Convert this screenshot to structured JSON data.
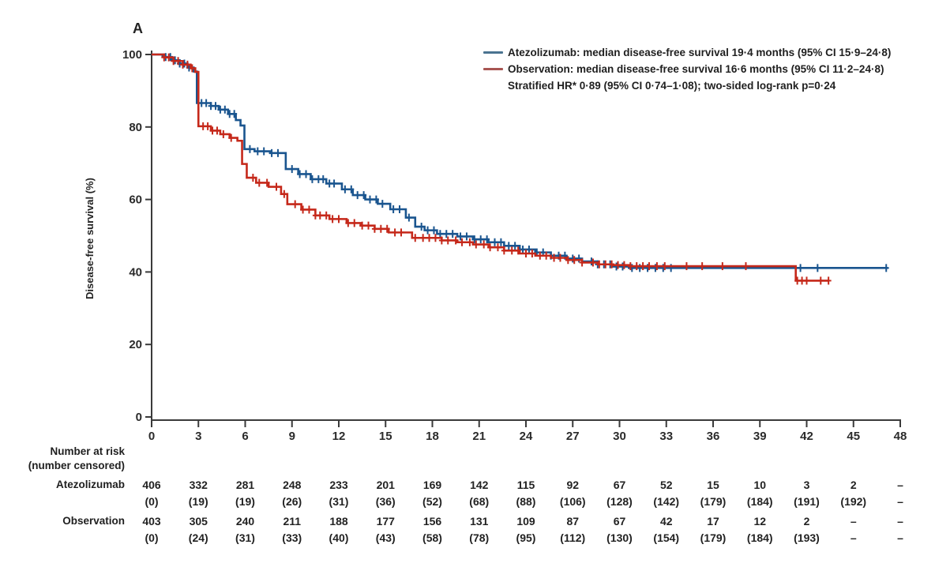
{
  "panel_label": "A",
  "colors": {
    "atezolizumab": "#1a558f",
    "observation": "#c5281a",
    "legend_atezolizumab": "#4a7390",
    "legend_observation": "#a85552",
    "axis": "#3a3a3a",
    "text": "#1a1a1a"
  },
  "legend": {
    "lines": [
      {
        "swatch": "atezolizumab",
        "text": "Atezolizumab: median disease-free survival 19·4 months (95% CI 15·9–24·8)"
      },
      {
        "swatch": "observation",
        "text": "Observation: median disease-free survival 16·6 months (95% CI 11·2–24·8)"
      },
      {
        "swatch": null,
        "text": "Stratified HR* 0·89 (95% CI 0·74–1·08); two-sided log-rank p=0·24"
      }
    ]
  },
  "chart_data": {
    "type": "line",
    "subtype": "kaplan-meier-step",
    "title": "",
    "xlabel": "",
    "ylabel": "Disease-free survival (%)",
    "xlim": [
      0,
      48
    ],
    "ylim": [
      0,
      100
    ],
    "xticks": [
      0,
      3,
      6,
      9,
      12,
      15,
      18,
      21,
      24,
      27,
      30,
      33,
      36,
      39,
      42,
      45,
      48
    ],
    "yticks": [
      0,
      20,
      40,
      60,
      80,
      100
    ],
    "grid": false,
    "legend_position": "top-right",
    "series": [
      {
        "name": "Atezolizumab",
        "color_key": "atezolizumab",
        "steps": [
          [
            0,
            100
          ],
          [
            0.7,
            99.3
          ],
          [
            1.3,
            98.4
          ],
          [
            1.8,
            97.5
          ],
          [
            2.3,
            96.4
          ],
          [
            2.7,
            95.3
          ],
          [
            2.9,
            86.6
          ],
          [
            3.8,
            85.8
          ],
          [
            4.3,
            84.8
          ],
          [
            4.9,
            83.6
          ],
          [
            5.4,
            81.9
          ],
          [
            5.7,
            80.4
          ],
          [
            5.95,
            73.9
          ],
          [
            6.6,
            73.3
          ],
          [
            7.6,
            72.8
          ],
          [
            8.6,
            68.4
          ],
          [
            9.4,
            67
          ],
          [
            10.2,
            65.6
          ],
          [
            11.2,
            64.4
          ],
          [
            12.2,
            62.8
          ],
          [
            12.9,
            61.2
          ],
          [
            13.7,
            60
          ],
          [
            14.5,
            58.8
          ],
          [
            15.3,
            57.3
          ],
          [
            16.3,
            55
          ],
          [
            16.9,
            52.5
          ],
          [
            17.5,
            51.5
          ],
          [
            18.3,
            50.5
          ],
          [
            19.6,
            49.8
          ],
          [
            20.6,
            49
          ],
          [
            21.6,
            48.2
          ],
          [
            22.6,
            47.2
          ],
          [
            23.6,
            46.2
          ],
          [
            24.6,
            45.4
          ],
          [
            25.6,
            44.5
          ],
          [
            26.6,
            43.7
          ],
          [
            27.6,
            42.9
          ],
          [
            28.6,
            42.1
          ],
          [
            29.6,
            41.5
          ],
          [
            30.6,
            41.1
          ],
          [
            47.2,
            41.1
          ]
        ],
        "censor_times": [
          0.9,
          1.2,
          1.5,
          1.8,
          2.1,
          2.4,
          3.2,
          3.5,
          3.8,
          4.1,
          4.4,
          4.7,
          5.0,
          5.3,
          6.3,
          6.8,
          7.2,
          7.7,
          8.1,
          9.0,
          9.5,
          9.9,
          10.3,
          10.7,
          11.0,
          11.4,
          11.7,
          12.4,
          12.8,
          13.2,
          13.6,
          14.0,
          14.4,
          14.8,
          15.5,
          15.9,
          16.5,
          17.3,
          17.7,
          18.1,
          18.5,
          18.9,
          19.3,
          19.8,
          20.2,
          20.7,
          21.1,
          21.5,
          22.0,
          22.4,
          22.9,
          23.3,
          23.8,
          24.2,
          24.7,
          25.1,
          25.6,
          26.1,
          26.5,
          27.0,
          27.4,
          28.2,
          28.6,
          29.0,
          29.4,
          29.8,
          30.2,
          30.8,
          31.3,
          31.8,
          32.3,
          32.8,
          33.3,
          41.6,
          42.7,
          47.1
        ]
      },
      {
        "name": "Observation",
        "color_key": "observation",
        "steps": [
          [
            0,
            100
          ],
          [
            0.8,
            99.2
          ],
          [
            1.4,
            98.2
          ],
          [
            2.0,
            97.2
          ],
          [
            2.5,
            96.2
          ],
          [
            2.8,
            95.2
          ],
          [
            3.0,
            80.2
          ],
          [
            3.8,
            79
          ],
          [
            4.4,
            78
          ],
          [
            5.0,
            77
          ],
          [
            5.5,
            76.2
          ],
          [
            5.8,
            69.8
          ],
          [
            6.1,
            66
          ],
          [
            6.7,
            64.6
          ],
          [
            7.5,
            63.5
          ],
          [
            8.3,
            61.5
          ],
          [
            8.7,
            58.7
          ],
          [
            9.6,
            57.2
          ],
          [
            10.5,
            55.6
          ],
          [
            11.4,
            54.6
          ],
          [
            12.5,
            53.5
          ],
          [
            13.4,
            52.8
          ],
          [
            14.3,
            51.9
          ],
          [
            15.2,
            50.9
          ],
          [
            16.7,
            49.4
          ],
          [
            18.6,
            48.7
          ],
          [
            19.6,
            48.2
          ],
          [
            20.6,
            47.6
          ],
          [
            21.6,
            46.8
          ],
          [
            22.6,
            45.9
          ],
          [
            23.6,
            45.1
          ],
          [
            24.6,
            44.5
          ],
          [
            25.6,
            43.9
          ],
          [
            26.6,
            43.3
          ],
          [
            27.6,
            42.6
          ],
          [
            28.6,
            42.1
          ],
          [
            29.6,
            41.9
          ],
          [
            30.6,
            41.6
          ],
          [
            41.1,
            41.6
          ],
          [
            41.3,
            37.6
          ],
          [
            43.4,
            37.6
          ]
        ],
        "censor_times": [
          0.8,
          1.1,
          1.4,
          1.7,
          2.0,
          2.3,
          2.6,
          3.3,
          3.6,
          3.9,
          4.2,
          4.6,
          5.1,
          6.5,
          6.9,
          7.4,
          8.0,
          8.5,
          9.2,
          9.7,
          10.1,
          10.5,
          10.8,
          11.2,
          11.6,
          12.0,
          12.6,
          13.0,
          13.5,
          13.9,
          14.3,
          14.7,
          15.1,
          15.6,
          16.0,
          16.9,
          17.4,
          17.8,
          18.2,
          18.6,
          19.0,
          19.5,
          19.9,
          20.4,
          20.8,
          21.3,
          21.7,
          22.2,
          22.6,
          23.1,
          23.5,
          24.0,
          24.4,
          24.9,
          25.3,
          25.8,
          26.2,
          26.7,
          27.1,
          27.6,
          28.3,
          28.7,
          29.1,
          29.5,
          29.9,
          30.3,
          30.7,
          31.1,
          31.5,
          31.9,
          32.4,
          32.9,
          34.3,
          35.3,
          36.6,
          38.1,
          41.4,
          41.7,
          42.0,
          42.9,
          43.4
        ]
      }
    ]
  },
  "risk_table": {
    "header_line1": "Number at risk",
    "header_line2": "(number censored)",
    "columns_months": [
      0,
      3,
      6,
      9,
      12,
      15,
      18,
      21,
      24,
      27,
      30,
      33,
      36,
      39,
      42,
      45,
      48
    ],
    "rows": [
      {
        "label": "Atezolizumab",
        "at_risk": [
          "406",
          "332",
          "281",
          "248",
          "233",
          "201",
          "169",
          "142",
          "115",
          "92",
          "67",
          "52",
          "15",
          "10",
          "3",
          "2",
          "–"
        ],
        "censored": [
          "(0)",
          "(19)",
          "(19)",
          "(26)",
          "(31)",
          "(36)",
          "(52)",
          "(68)",
          "(88)",
          "(106)",
          "(128)",
          "(142)",
          "(179)",
          "(184)",
          "(191)",
          "(192)",
          "–"
        ]
      },
      {
        "label": "Observation",
        "at_risk": [
          "403",
          "305",
          "240",
          "211",
          "188",
          "177",
          "156",
          "131",
          "109",
          "87",
          "67",
          "42",
          "17",
          "12",
          "2",
          "–",
          "–"
        ],
        "censored": [
          "(0)",
          "(24)",
          "(31)",
          "(33)",
          "(40)",
          "(43)",
          "(58)",
          "(78)",
          "(95)",
          "(112)",
          "(130)",
          "(154)",
          "(179)",
          "(184)",
          "(193)",
          "–",
          "–"
        ]
      }
    ]
  }
}
